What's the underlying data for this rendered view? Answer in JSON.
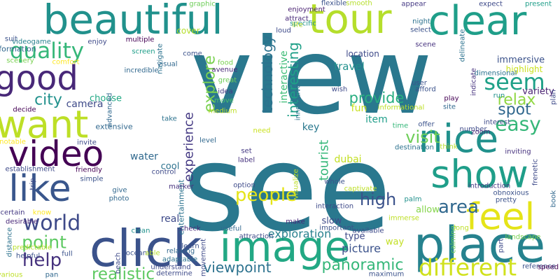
{
  "words": [
    {
      "text": "view",
      "color": "#2a788e"
    },
    {
      "text": "see",
      "color": "#2a788e"
    },
    {
      "text": "click",
      "color": "#3b528b"
    },
    {
      "text": "place",
      "color": "#26828e"
    },
    {
      "text": "image",
      "color": "#22a884"
    },
    {
      "text": "beautiful",
      "color": "#21918c"
    },
    {
      "text": "tour",
      "color": "#b5de2b"
    },
    {
      "text": "clear",
      "color": "#1f9e89"
    },
    {
      "text": "nice",
      "color": "#21918c"
    },
    {
      "text": "show",
      "color": "#1f9e89"
    },
    {
      "text": "feel",
      "color": "#e5e419"
    },
    {
      "text": "want",
      "color": "#bddf26"
    },
    {
      "text": "video",
      "color": "#440154"
    },
    {
      "text": "like",
      "color": "#39568c"
    },
    {
      "text": "good",
      "color": "#482878"
    },
    {
      "text": "different",
      "color": "#d0e11c"
    },
    {
      "text": "people",
      "color": "#e5e419"
    },
    {
      "text": "area",
      "color": "#31688e"
    },
    {
      "text": "world",
      "color": "#3e4a89"
    },
    {
      "text": "quality",
      "color": "#35b779"
    },
    {
      "text": "experience",
      "color": "#443983"
    },
    {
      "text": "explore",
      "color": "#7ad151"
    },
    {
      "text": "technology",
      "color": "#2c728e"
    },
    {
      "text": "interesting",
      "color": "#1fa088"
    },
    {
      "text": "interactive",
      "color": "#3bbb75"
    },
    {
      "text": "seem",
      "color": "#1fa188"
    },
    {
      "text": "relax",
      "color": "#90d743"
    },
    {
      "text": "easy",
      "color": "#35b779"
    },
    {
      "text": "spot",
      "color": "#31688e"
    },
    {
      "text": "visit",
      "color": "#6ece58"
    },
    {
      "text": "provide",
      "color": "#28ae80"
    },
    {
      "text": "high",
      "color": "#3b528b"
    },
    {
      "text": "city",
      "color": "#21918c"
    },
    {
      "text": "help",
      "color": "#46327e"
    },
    {
      "text": "point",
      "color": "#5ec962"
    },
    {
      "text": "realistic",
      "color": "#5ec962"
    },
    {
      "text": "panoramic",
      "color": "#35b779"
    },
    {
      "text": "viewpoint",
      "color": "#2c728e"
    },
    {
      "text": "exploration",
      "color": "#27808e"
    },
    {
      "text": "picture",
      "color": "#3b528b"
    },
    {
      "text": "travel",
      "color": "#21918c"
    },
    {
      "text": "camera",
      "color": "#3e4a89"
    },
    {
      "text": "choose",
      "color": "#22a884"
    },
    {
      "text": "immersive",
      "color": "#3b528b"
    },
    {
      "text": "highlight",
      "color": "#cae11f"
    },
    {
      "text": "variety",
      "color": "#481f70"
    },
    {
      "text": "location",
      "color": "#3e4a89"
    },
    {
      "text": "fun",
      "color": "#c8e020"
    },
    {
      "text": "tourist",
      "color": "#35b779"
    },
    {
      "text": "key",
      "color": "#2a788e"
    },
    {
      "text": "item",
      "color": "#1f9e89"
    },
    {
      "text": "water",
      "color": "#30698e"
    },
    {
      "text": "cool",
      "color": "#2c728e"
    },
    {
      "text": "slow",
      "color": "#3e4a89"
    },
    {
      "text": "type",
      "color": "#3e4a89"
    },
    {
      "text": "way",
      "color": "#c2df23"
    },
    {
      "text": "real",
      "color": "#3e4a89"
    },
    {
      "text": "allow",
      "color": "#84d44b"
    },
    {
      "text": "dubai",
      "color": "#c2df23"
    },
    {
      "text": "extensive",
      "color": "#31688e"
    },
    {
      "text": "entertainment",
      "color": "#2c728e"
    },
    {
      "text": "information",
      "color": "#31688e"
    },
    {
      "text": "videogame",
      "color": "#27808e"
    },
    {
      "text": "enjoy",
      "color": "#3e4a89"
    },
    {
      "text": "cover",
      "color": "#b5de2b"
    },
    {
      "text": "graphic",
      "color": "#6ece58"
    },
    {
      "text": "enjoyment",
      "color": "#481f70"
    },
    {
      "text": "flexible",
      "color": "#3b528b"
    },
    {
      "text": "smooth",
      "color": "#b5de2b"
    },
    {
      "text": "appear",
      "color": "#443983"
    },
    {
      "text": "expect",
      "color": "#3e4a89"
    },
    {
      "text": "present",
      "color": "#1f9e89"
    },
    {
      "text": "specific",
      "color": "#21918c"
    },
    {
      "text": "loud",
      "color": "#3e4a89"
    },
    {
      "text": "attract",
      "color": "#482878"
    },
    {
      "text": "life",
      "color": "#bddf26"
    },
    {
      "text": "night",
      "color": "#2c728e"
    },
    {
      "text": "select",
      "color": "#3b528b"
    },
    {
      "text": "delineate",
      "color": "#2c728e"
    },
    {
      "text": "scene",
      "color": "#46327e"
    },
    {
      "text": "suit",
      "color": "#3b528b"
    },
    {
      "text": "multiple",
      "color": "#440154"
    },
    {
      "text": "screen",
      "color": "#1f9e89"
    },
    {
      "text": "navigate",
      "color": "#2c728e"
    },
    {
      "text": "scenery",
      "color": "#7ad151"
    },
    {
      "text": "comfort",
      "color": "#fde725"
    },
    {
      "text": "visual",
      "color": "#31688e"
    },
    {
      "text": "come",
      "color": "#3b528b"
    },
    {
      "text": "food",
      "color": "#7ad151"
    },
    {
      "text": "avenue",
      "color": "#482878"
    },
    {
      "text": "great",
      "color": "#6ece58"
    },
    {
      "text": "idea",
      "color": "#443983"
    },
    {
      "text": "move",
      "color": "#4ac16d"
    },
    {
      "text": "medium",
      "color": "#bddf26"
    },
    {
      "text": "incredible",
      "color": "#31688e"
    },
    {
      "text": "wish",
      "color": "#3e4a89"
    },
    {
      "text": "innovative",
      "color": "#2c728e"
    },
    {
      "text": "informational",
      "color": "#bddf26"
    },
    {
      "text": "user",
      "color": "#3b528b"
    },
    {
      "text": "afford",
      "color": "#3b528b"
    },
    {
      "text": "indicate",
      "color": "#46327e"
    },
    {
      "text": "dimensional",
      "color": "#2c728e"
    },
    {
      "text": "run",
      "color": "#21918c"
    },
    {
      "text": "play",
      "color": "#440154"
    },
    {
      "text": "site",
      "color": "#31688e"
    },
    {
      "text": "plan",
      "color": "#3e4a89"
    },
    {
      "text": "decide",
      "color": "#440154"
    },
    {
      "text": "advanced",
      "color": "#31688e"
    },
    {
      "text": "take",
      "color": "#2c728e"
    },
    {
      "text": "need",
      "color": "#cae11f"
    },
    {
      "text": "time",
      "color": "#35b779"
    },
    {
      "text": "offer",
      "color": "#3b528b"
    },
    {
      "text": "number",
      "color": "#3e4a89"
    },
    {
      "text": "interest",
      "color": "#3e4a89"
    },
    {
      "text": "zoom",
      "color": "#482878"
    },
    {
      "text": "notable",
      "color": "#fde725"
    },
    {
      "text": "invite",
      "color": "#3e4a89"
    },
    {
      "text": "level",
      "color": "#31688e"
    },
    {
      "text": "set",
      "color": "#443983"
    },
    {
      "text": "label",
      "color": "#46327e"
    },
    {
      "text": "option",
      "color": "#3e4a89"
    },
    {
      "text": "visualize",
      "color": "#bddf26"
    },
    {
      "text": "destination",
      "color": "#2c728e"
    },
    {
      "text": "think",
      "color": "#b5de2b"
    },
    {
      "text": "inviting",
      "color": "#46327e"
    },
    {
      "text": "frenetic",
      "color": "#3e4a89"
    },
    {
      "text": "book",
      "color": "#31688e"
    },
    {
      "text": "establishment",
      "color": "#3e4a89"
    },
    {
      "text": "friendly",
      "color": "#440154"
    },
    {
      "text": "simple",
      "color": "#3b528b"
    },
    {
      "text": "control",
      "color": "#3e4a89"
    },
    {
      "text": "trip",
      "color": "#3e4a89"
    },
    {
      "text": "whole",
      "color": "#3b528b"
    },
    {
      "text": "give",
      "color": "#31688e"
    },
    {
      "text": "photo",
      "color": "#31688e"
    },
    {
      "text": "marker",
      "color": "#46327e"
    },
    {
      "text": "captivate",
      "color": "#bddf26"
    },
    {
      "text": "introduction",
      "color": "#443983"
    },
    {
      "text": "obnoxious",
      "color": "#3b528b"
    },
    {
      "text": "pretty",
      "color": "#3b528b"
    },
    {
      "text": "interaction",
      "color": "#3e4a89"
    },
    {
      "text": "palm",
      "color": "#21918c"
    },
    {
      "text": "certain",
      "color": "#443983"
    },
    {
      "text": "know",
      "color": "#fde725"
    },
    {
      "text": "desirable",
      "color": "#482878"
    },
    {
      "text": "clean",
      "color": "#21918c"
    },
    {
      "text": "check",
      "color": "#482878"
    },
    {
      "text": "useful",
      "color": "#31688e"
    },
    {
      "text": "make",
      "color": "#482878"
    },
    {
      "text": "important",
      "color": "#3b528b"
    },
    {
      "text": "immerse",
      "color": "#bddf26"
    },
    {
      "text": "distance",
      "color": "#2c728e"
    },
    {
      "text": "predictable",
      "color": "#b5de2b"
    },
    {
      "text": "helpful",
      "color": "#3b528b"
    },
    {
      "text": "full",
      "color": "#3b528b"
    },
    {
      "text": "ocean",
      "color": "#3b528b"
    },
    {
      "text": "beach",
      "color": "#3e4a89"
    },
    {
      "text": "relaxing",
      "color": "#31688e"
    },
    {
      "text": "learn",
      "color": "#3b528b"
    },
    {
      "text": "attraction",
      "color": "#3e4a89"
    },
    {
      "text": "available",
      "color": "#3e4a89"
    },
    {
      "text": "calming",
      "color": "#6ece58"
    },
    {
      "text": "long",
      "color": "#bddf26"
    },
    {
      "text": "landscape",
      "color": "#7ad151"
    },
    {
      "text": "reference",
      "color": "#3b528b"
    },
    {
      "text": "speed",
      "color": "#440154"
    },
    {
      "text": "part",
      "color": "#3e4a89"
    },
    {
      "text": "various",
      "color": "#bddf26"
    },
    {
      "text": "able",
      "color": "#b5de2b"
    },
    {
      "text": "pan",
      "color": "#31688e"
    },
    {
      "text": "understand",
      "color": "#3e4a89"
    },
    {
      "text": "determine",
      "color": "#3e4a89"
    },
    {
      "text": "adaptable",
      "color": "#2c728e"
    },
    {
      "text": "movement",
      "color": "#3e4a89"
    },
    {
      "text": "maximum",
      "color": "#3b528b"
    },
    {
      "text": "day",
      "color": "#fde725"
    }
  ]
}
